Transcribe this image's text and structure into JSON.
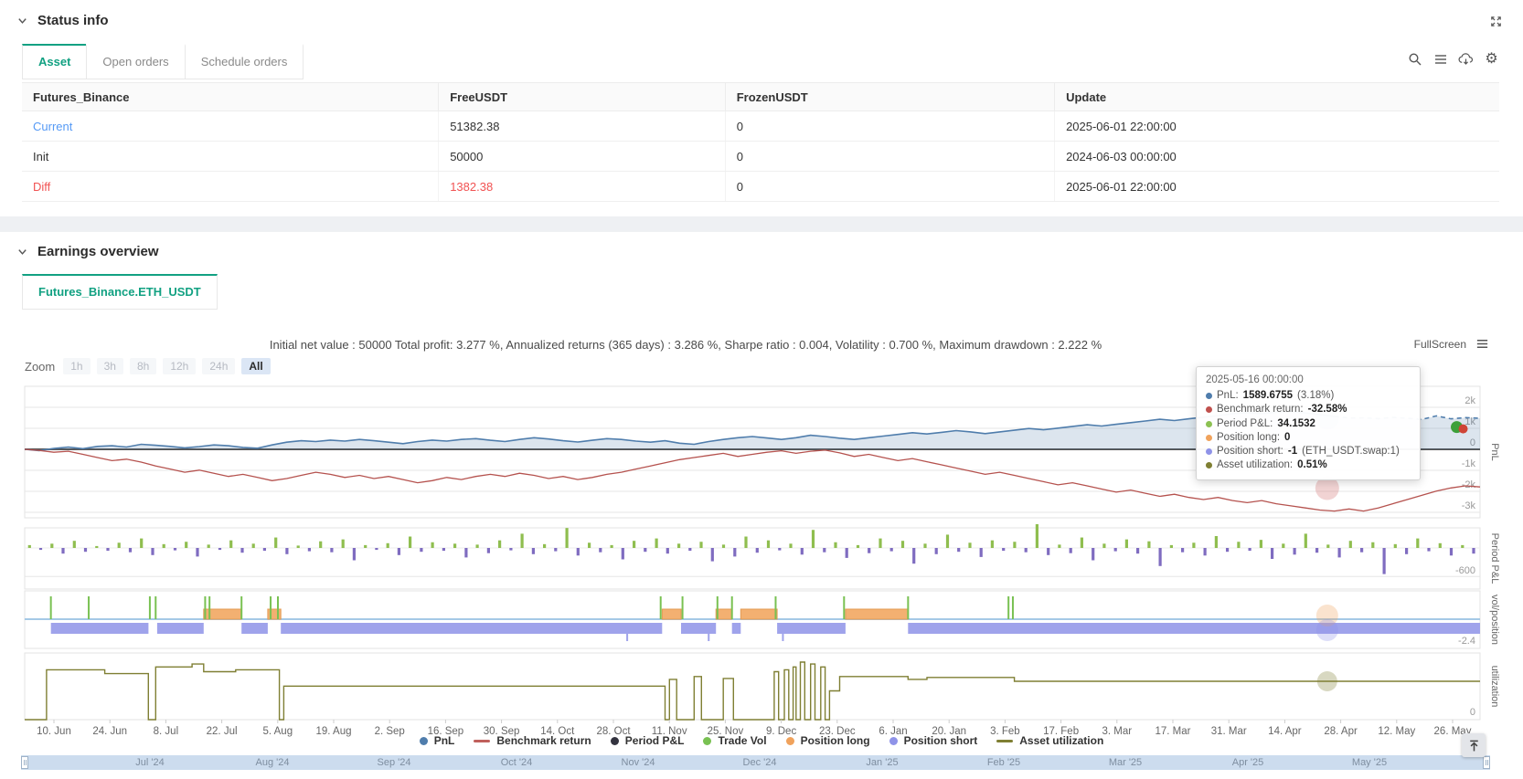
{
  "colors": {
    "accent_green": "#12a182",
    "link_blue": "#569af5",
    "alert_red": "#f15252"
  },
  "status_section": {
    "title": "Status info",
    "tabs": [
      {
        "label": "Asset",
        "active": true
      },
      {
        "label": "Open orders",
        "active": false
      },
      {
        "label": "Schedule orders",
        "active": false
      }
    ],
    "toolbar_icons": [
      "search-icon",
      "menu-icon",
      "cloud-download-icon",
      "gear-icon"
    ],
    "table": {
      "headers": [
        "Futures_Binance",
        "FreeUSDT",
        "FrozenUSDT",
        "Update"
      ],
      "rows": [
        {
          "name": "Current",
          "free": "51382.38",
          "frozen": "0",
          "update": "2025-06-01 22:00:00",
          "name_color": "#569af5",
          "free_color": "#333333"
        },
        {
          "name": "Init",
          "free": "50000",
          "frozen": "0",
          "update": "2024-06-03 00:00:00",
          "name_color": "#333333",
          "free_color": "#333333"
        },
        {
          "name": "Diff",
          "free": "1382.38",
          "frozen": "0",
          "update": "2025-06-01 22:00:00",
          "name_color": "#f15252",
          "free_color": "#f15252"
        }
      ]
    }
  },
  "earnings_section": {
    "title": "Earnings overview",
    "tab": "Futures_Binance.ETH_USDT",
    "stats": "Initial net value : 50000 Total profit: 3.277 %, Annualized returns (365 days) : 3.286 %, Sharpe ratio : 0.004, Volatility : 0.700 %, Maximum drawdown : 2.222 %",
    "fullscreen_label": "FullScreen",
    "zoom": {
      "label": "Zoom",
      "buttons": [
        "1h",
        "3h",
        "8h",
        "12h",
        "24h",
        "All"
      ],
      "active": "All"
    }
  },
  "tooltip": {
    "title": "2025-05-16 00:00:00",
    "rows": [
      {
        "dot": "#4f7dac",
        "label": "PnL: ",
        "bold": "1589.6755",
        "tail": " (3.18%)"
      },
      {
        "dot": "#c0504d",
        "label": "Benchmark return: ",
        "bold": "-32.58%",
        "tail": ""
      },
      {
        "dot": "#8cc152",
        "label": "Period P&L: ",
        "bold": "34.1532",
        "tail": ""
      },
      {
        "dot": "#f0a25c",
        "label": "Position long: ",
        "bold": "0",
        "tail": ""
      },
      {
        "dot": "#8f93e8",
        "label": "Position short: ",
        "bold": "-1",
        "tail": " (ETH_USDT.swap:1)"
      },
      {
        "dot": "#7f7f33",
        "label": "Asset utilization: ",
        "bold": "0.51%",
        "tail": ""
      }
    ]
  },
  "chart_data": {
    "type": "line",
    "title": "Earnings overview — Futures_Binance.ETH_USDT",
    "x_ticks": [
      "10. Jun",
      "24. Jun",
      "8. Jul",
      "22. Jul",
      "5. Aug",
      "19. Aug",
      "2. Sep",
      "16. Sep",
      "30. Sep",
      "14. Oct",
      "28. Oct",
      "11. Nov",
      "25. Nov",
      "9. Dec",
      "23. Dec",
      "6. Jan",
      "20. Jan",
      "3. Feb",
      "17. Feb",
      "3. Mar",
      "17. Mar",
      "31. Mar",
      "14. Apr",
      "28. Apr",
      "12. May",
      "26. May"
    ],
    "panel_titles": [
      "PnL",
      "Period P&L",
      "vol/position",
      "utilization"
    ],
    "pnl_axis": [
      [
        2000,
        "2k"
      ],
      [
        1000,
        "1k"
      ],
      [
        0,
        "0"
      ],
      [
        -1000,
        "-1k"
      ],
      [
        -2000,
        "-2k"
      ],
      [
        -3000,
        "-3k"
      ]
    ],
    "period_axis_label": "-600",
    "position_axis_label": "-2.4",
    "utilization_axis_label": "0",
    "series": [
      {
        "name": "PnL",
        "color": "#4f7dac",
        "area": "rgba(79,125,172,0.20)",
        "dashed_from": 0.9,
        "values": [
          0,
          -60,
          40,
          110,
          30,
          140,
          170,
          110,
          240,
          190,
          140,
          70,
          130,
          210,
          170,
          90,
          50,
          210,
          340,
          410,
          370,
          440,
          390,
          470,
          410,
          340,
          270,
          370,
          440,
          390,
          470,
          510,
          430,
          370,
          470,
          550,
          490,
          410,
          350,
          430,
          510,
          470,
          390,
          340,
          410,
          290,
          240,
          370,
          470,
          550,
          610,
          540,
          470,
          550,
          670,
          610,
          530,
          470,
          550,
          630,
          710,
          790,
          730,
          810,
          890,
          830,
          750,
          830,
          910,
          990,
          930,
          1010,
          1090,
          1170,
          1110,
          1190,
          1270,
          1350,
          1430,
          1370,
          1450,
          1530,
          1610,
          1690,
          1750,
          1690,
          1770,
          1810,
          1730,
          1650,
          1570,
          1490,
          1500,
          1460,
          1520,
          1480,
          1420,
          1590,
          1450,
          1510,
          1480
        ]
      },
      {
        "name": "Benchmark return",
        "color": "#b5524e",
        "values": [
          0,
          -50,
          -140,
          -90,
          -240,
          -390,
          -540,
          -470,
          -610,
          -790,
          -940,
          -1090,
          -990,
          -1140,
          -1290,
          -1190,
          -1340,
          -1490,
          -1390,
          -1240,
          -1090,
          -1190,
          -1340,
          -1240,
          -1390,
          -1290,
          -1440,
          -1590,
          -1490,
          -1340,
          -1440,
          -1290,
          -1190,
          -1290,
          -1140,
          -1240,
          -1390,
          -1290,
          -1440,
          -1340,
          -1190,
          -1090,
          -940,
          -790,
          -640,
          -490,
          -390,
          -290,
          -190,
          -340,
          -240,
          -140,
          -70,
          -190,
          -90,
          -40,
          -170,
          -340,
          -240,
          -390,
          -540,
          -440,
          -590,
          -740,
          -890,
          -1040,
          -1190,
          -1090,
          -1240,
          -1390,
          -1540,
          -1690,
          -1590,
          -1740,
          -1890,
          -2040,
          -1940,
          -2090,
          -2240,
          -2140,
          -2290,
          -2390,
          -2290,
          -2440,
          -2540,
          -2440,
          -2590,
          -2690,
          -2790,
          -2890,
          -2940,
          -2840,
          -2940,
          -2790,
          -2590,
          -2390,
          -2190,
          -1990,
          -1840,
          -1740,
          -1790
        ]
      }
    ],
    "period_pnl_bars": {
      "pos_color": "#8fbe4f",
      "neg_color": "#7f6cc0",
      "values": [
        60,
        -40,
        90,
        -120,
        150,
        -80,
        40,
        -60,
        110,
        -90,
        200,
        -150,
        80,
        -50,
        130,
        -180,
        70,
        -40,
        160,
        -100,
        90,
        -60,
        220,
        -130,
        50,
        -70,
        140,
        -90,
        180,
        -260,
        60,
        -40,
        100,
        -150,
        240,
        -80,
        120,
        -60,
        90,
        -200,
        70,
        -110,
        160,
        -50,
        300,
        -130,
        80,
        -70,
        420,
        -160,
        110,
        -90,
        60,
        -240,
        150,
        -80,
        200,
        -120,
        90,
        -60,
        130,
        -280,
        70,
        -180,
        240,
        -100,
        160,
        -50,
        90,
        -140,
        380,
        -90,
        120,
        -210,
        60,
        -110,
        200,
        -70,
        150,
        -330,
        90,
        -130,
        280,
        -80,
        110,
        -190,
        160,
        -60,
        130,
        -90,
        500,
        -150,
        70,
        -110,
        220,
        -260,
        90,
        -70,
        180,
        -120,
        140,
        -380,
        60,
        -90,
        110,
        -160,
        250,
        -80,
        130,
        -60,
        170,
        -230,
        90,
        -140,
        300,
        -100,
        70,
        -200,
        150,
        -90,
        120,
        -550,
        80,
        -130,
        200,
        -70,
        100,
        -160,
        60,
        -120
      ]
    },
    "position": {
      "zero_line_color": "#a5c9e6",
      "long_color": "#f3b071",
      "long_stroke": "#e39b54",
      "short_color": "#9fa3eb",
      "long_segments": [
        [
          0.123,
          0.149
        ],
        [
          0.167,
          0.176
        ],
        [
          0.438,
          0.451
        ],
        [
          0.475,
          0.486
        ],
        [
          0.492,
          0.517
        ],
        [
          0.564,
          0.607
        ]
      ],
      "short_segments": [
        [
          0.018,
          0.085
        ],
        [
          0.091,
          0.123
        ],
        [
          0.149,
          0.167
        ],
        [
          0.176,
          0.438
        ],
        [
          0.451,
          0.475
        ],
        [
          0.486,
          0.492
        ],
        [
          0.517,
          0.564
        ],
        [
          0.607,
          1.0
        ]
      ],
      "short_notches": [
        0.414,
        0.47,
        0.521
      ],
      "trade_vol_color": "#79c152",
      "trade_vol_ticks": [
        0.018,
        0.044,
        0.086,
        0.09,
        0.124,
        0.127,
        0.149,
        0.169,
        0.174,
        0.437,
        0.452,
        0.476,
        0.486,
        0.516,
        0.563,
        0.607,
        0.676,
        0.679
      ]
    },
    "utilization": {
      "color": "#7f7f33",
      "steps": [
        [
          0,
          0
        ],
        [
          0.015,
          0
        ],
        [
          0.015,
          0.52
        ],
        [
          0.055,
          0.52
        ],
        [
          0.055,
          0.48
        ],
        [
          0.085,
          0.48
        ],
        [
          0.085,
          0
        ],
        [
          0.09,
          0
        ],
        [
          0.09,
          0.55
        ],
        [
          0.115,
          0.55
        ],
        [
          0.115,
          0.58
        ],
        [
          0.123,
          0.58
        ],
        [
          0.123,
          0.5
        ],
        [
          0.145,
          0.5
        ],
        [
          0.145,
          0.52
        ],
        [
          0.175,
          0.52
        ],
        [
          0.175,
          0
        ],
        [
          0.178,
          0
        ],
        [
          0.178,
          0.35
        ],
        [
          0.44,
          0.35
        ],
        [
          0.44,
          0
        ],
        [
          0.443,
          0
        ],
        [
          0.443,
          0.42
        ],
        [
          0.448,
          0.42
        ],
        [
          0.448,
          0
        ],
        [
          0.46,
          0
        ],
        [
          0.46,
          0.45
        ],
        [
          0.465,
          0.45
        ],
        [
          0.465,
          0
        ],
        [
          0.48,
          0
        ],
        [
          0.48,
          0.43
        ],
        [
          0.487,
          0.43
        ],
        [
          0.487,
          0
        ],
        [
          0.515,
          0
        ],
        [
          0.515,
          0.5
        ],
        [
          0.518,
          0.5
        ],
        [
          0.518,
          0
        ],
        [
          0.522,
          0
        ],
        [
          0.522,
          0.52
        ],
        [
          0.525,
          0.52
        ],
        [
          0.525,
          0
        ],
        [
          0.528,
          0
        ],
        [
          0.528,
          0.55
        ],
        [
          0.53,
          0.55
        ],
        [
          0.53,
          0
        ],
        [
          0.533,
          0
        ],
        [
          0.533,
          0.6
        ],
        [
          0.536,
          0.6
        ],
        [
          0.536,
          0
        ],
        [
          0.54,
          0
        ],
        [
          0.54,
          0.58
        ],
        [
          0.543,
          0.58
        ],
        [
          0.543,
          0
        ],
        [
          0.547,
          0
        ],
        [
          0.547,
          0.55
        ],
        [
          0.55,
          0.55
        ],
        [
          0.55,
          0
        ],
        [
          0.553,
          0
        ],
        [
          0.553,
          0.3
        ],
        [
          0.56,
          0.3
        ],
        [
          0.56,
          0.45
        ],
        [
          0.607,
          0.45
        ],
        [
          0.607,
          0.42
        ],
        [
          0.62,
          0.42
        ],
        [
          0.62,
          0.44
        ],
        [
          0.68,
          0.44
        ],
        [
          0.68,
          0.4
        ],
        [
          1.0,
          0.4
        ]
      ]
    },
    "hover": {
      "f": 0.895,
      "pnl_v": 1500,
      "bench_v": -1850,
      "util_v": 0.4
    },
    "end_dots": {
      "f": 0.984,
      "v": 1060,
      "green": "#3da03a",
      "red": "#cf4436"
    },
    "legend": [
      {
        "label": "PnL",
        "color": "#4f7dac",
        "type": "circle"
      },
      {
        "label": "Benchmark return",
        "color": "#c0605c",
        "type": "line"
      },
      {
        "label": "Period P&L",
        "color": "#33333f",
        "type": "circle"
      },
      {
        "label": "Trade Vol",
        "color": "#79c152",
        "type": "circle"
      },
      {
        "label": "Position long",
        "color": "#f0a25c",
        "type": "circle"
      },
      {
        "label": "Position short",
        "color": "#8f93e8",
        "type": "circle"
      },
      {
        "label": "Asset utilization",
        "color": "#7f7f33",
        "type": "line"
      }
    ],
    "legend_position": "bottom-center",
    "grid": true,
    "navigator_months": [
      "Jul '24",
      "Aug '24",
      "Sep '24",
      "Oct '24",
      "Nov '24",
      "Dec '24",
      "Jan '25",
      "Feb '25",
      "Mar '25",
      "Apr '25",
      "May '25"
    ]
  }
}
